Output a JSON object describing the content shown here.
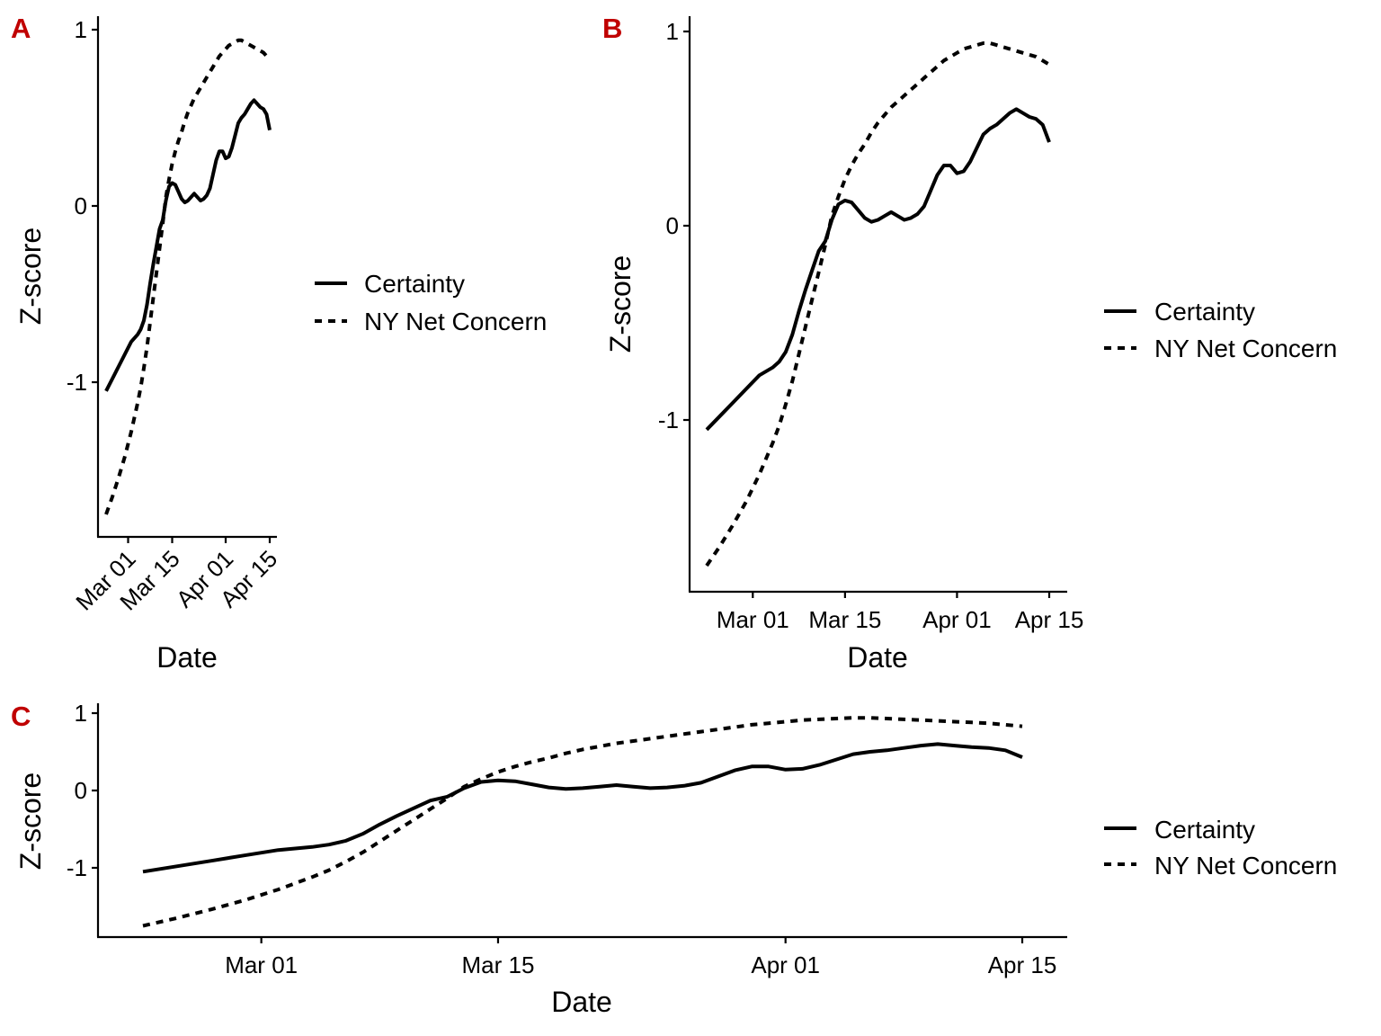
{
  "colors": {
    "line": "#000000",
    "panel_letter": "#c00000",
    "background": "#ffffff"
  },
  "chart_data": [
    {
      "panel": "A",
      "type": "line",
      "xlabel": "Date",
      "ylabel": "Z-score",
      "x_ticks": [
        "Mar 01",
        "Mar 15",
        "Apr 01",
        "Apr 15"
      ],
      "y_ticks": [
        "1",
        "0",
        "-1"
      ],
      "xlim": [
        "2020-02-23",
        "2020-04-17"
      ],
      "ylim": [
        -1.88,
        1.08
      ],
      "tick_label_rotation": 45,
      "legend": "right",
      "grid": false,
      "series": [
        {
          "name": "Certainty",
          "style": "solid"
        },
        {
          "name": "NY Net Concern",
          "style": "dashed"
        }
      ]
    },
    {
      "panel": "B",
      "type": "line",
      "xlabel": "Date",
      "ylabel": "Z-score",
      "x_ticks": [
        "Mar 01",
        "Mar 15",
        "Apr 01",
        "Apr 15"
      ],
      "y_ticks": [
        "1",
        "0",
        "-1"
      ],
      "xlim": [
        "2020-02-23",
        "2020-04-17"
      ],
      "ylim": [
        -1.88,
        1.08
      ],
      "tick_label_rotation": 0,
      "legend": "right",
      "grid": false,
      "series": [
        {
          "name": "Certainty",
          "style": "solid"
        },
        {
          "name": "NY Net Concern",
          "style": "dashed"
        }
      ]
    },
    {
      "panel": "C",
      "type": "line",
      "xlabel": "Date",
      "ylabel": "Z-score",
      "x_ticks": [
        "Mar 01",
        "Mar 15",
        "Apr 01",
        "Apr 15"
      ],
      "y_ticks": [
        "1",
        "0",
        "-1"
      ],
      "xlim": [
        "2020-02-23",
        "2020-04-17"
      ],
      "ylim": [
        -1.88,
        1.08
      ],
      "tick_label_rotation": 0,
      "legend": "right",
      "grid": false,
      "series": [
        {
          "name": "Certainty",
          "style": "solid"
        },
        {
          "name": "NY Net Concern",
          "style": "dashed"
        }
      ]
    }
  ],
  "series_values": {
    "x": [
      "2020-02-23",
      "2020-02-25",
      "2020-02-27",
      "2020-02-29",
      "2020-03-02",
      "2020-03-04",
      "2020-03-05",
      "2020-03-06",
      "2020-03-07",
      "2020-03-08",
      "2020-03-09",
      "2020-03-10",
      "2020-03-11",
      "2020-03-12",
      "2020-03-13",
      "2020-03-14",
      "2020-03-15",
      "2020-03-16",
      "2020-03-17",
      "2020-03-18",
      "2020-03-19",
      "2020-03-20",
      "2020-03-21",
      "2020-03-22",
      "2020-03-23",
      "2020-03-24",
      "2020-03-25",
      "2020-03-26",
      "2020-03-27",
      "2020-03-28",
      "2020-03-29",
      "2020-03-30",
      "2020-03-31",
      "2020-04-01",
      "2020-04-02",
      "2020-04-03",
      "2020-04-04",
      "2020-04-05",
      "2020-04-06",
      "2020-04-07",
      "2020-04-08",
      "2020-04-09",
      "2020-04-10",
      "2020-04-11",
      "2020-04-12",
      "2020-04-13",
      "2020-04-14",
      "2020-04-15"
    ],
    "certainty": [
      -1.05,
      -0.98,
      -0.91,
      -0.84,
      -0.77,
      -0.73,
      -0.7,
      -0.65,
      -0.56,
      -0.44,
      -0.33,
      -0.23,
      -0.13,
      -0.08,
      0.03,
      0.11,
      0.13,
      0.12,
      0.08,
      0.04,
      0.02,
      0.03,
      0.05,
      0.07,
      0.05,
      0.03,
      0.04,
      0.06,
      0.1,
      0.18,
      0.26,
      0.31,
      0.31,
      0.27,
      0.28,
      0.33,
      0.4,
      0.47,
      0.5,
      0.52,
      0.55,
      0.58,
      0.6,
      0.58,
      0.56,
      0.55,
      0.52,
      0.43
    ],
    "ny_net_concern": [
      -1.75,
      -1.65,
      -1.54,
      -1.42,
      -1.28,
      -1.12,
      -1.03,
      -0.92,
      -0.8,
      -0.66,
      -0.52,
      -0.38,
      -0.24,
      -0.1,
      0.05,
      0.15,
      0.24,
      0.31,
      0.37,
      0.42,
      0.48,
      0.53,
      0.57,
      0.61,
      0.64,
      0.67,
      0.7,
      0.73,
      0.76,
      0.79,
      0.82,
      0.85,
      0.87,
      0.89,
      0.91,
      0.92,
      0.93,
      0.94,
      0.94,
      0.93,
      0.92,
      0.91,
      0.9,
      0.89,
      0.88,
      0.87,
      0.85,
      0.83
    ]
  }
}
